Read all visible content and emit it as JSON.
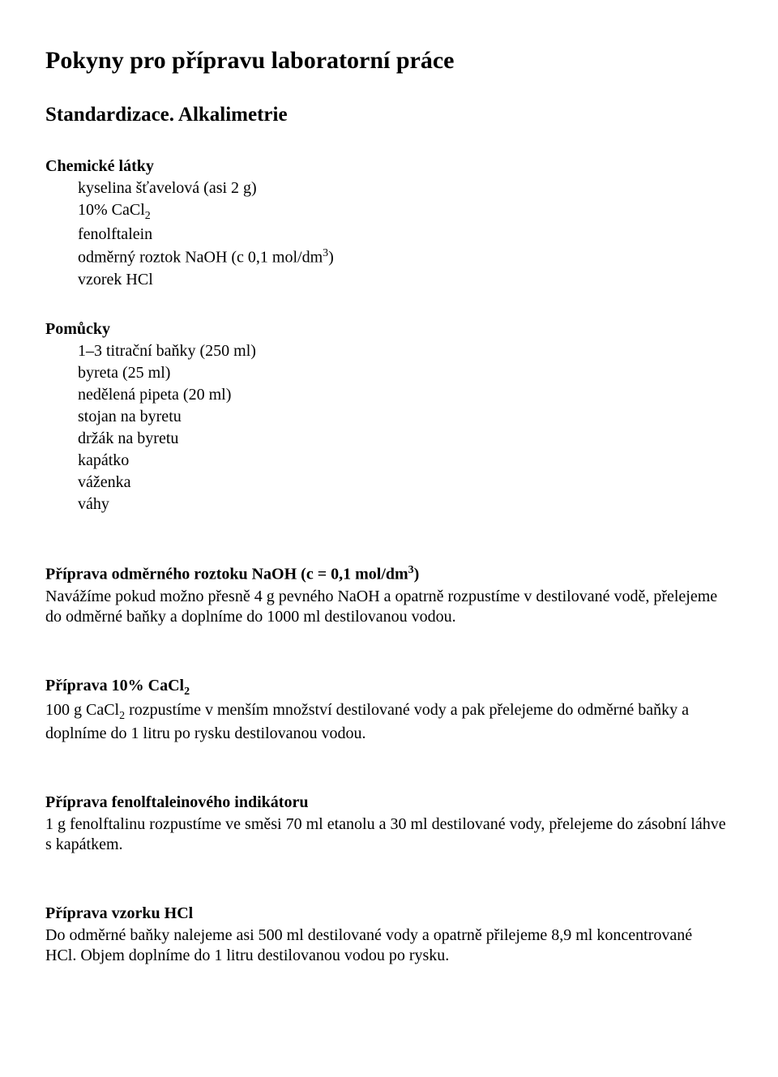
{
  "title": "Pokyny pro přípravu laboratorní práce",
  "subtitle": "Standardizace. Alkalimetrie",
  "chemicals": {
    "heading": "Chemické látky",
    "items": [
      "kyselina šťavelová (asi 2 g)",
      "10% CaCl<sub>2</sub>",
      "fenolftalein",
      "odměrný roztok NaOH (c 0,1 mol/dm<sup>3</sup>)",
      "vzorek HCl"
    ]
  },
  "tools": {
    "heading": "Pomůcky",
    "items": [
      "1–3 titrační baňky (250 ml)",
      "byreta (25 ml)",
      "nedělená pipeta (20 ml)",
      "stojan na byretu",
      "držák na byretu",
      "kapátko",
      "váženka",
      "váhy"
    ]
  },
  "naoh": {
    "heading": "Příprava odměrného roztoku NaOH (c = 0,1 mol/dm<sup>3</sup>)",
    "body": "Navážíme pokud možno přesně 4 g pevného NaOH a opatrně rozpustíme v destilované vodě, přelejeme do odměrné baňky a doplníme do 1000 ml destilovanou vodou."
  },
  "cacl2": {
    "heading": "Příprava 10% CaCl<sub>2</sub>",
    "body": "100 g CaCl<sub>2</sub> rozpustíme v menším množství destilované vody a pak přelejeme do odměrné baňky a doplníme do 1 litru po rysku destilovanou vodou."
  },
  "fenol": {
    "heading": "Příprava fenolftaleinového indikátoru",
    "body": "1 g fenolftalinu rozpustíme ve směsi 70 ml etanolu a 30 ml destilované vody, přelejeme do zásobní láhve s kapátkem."
  },
  "hcl": {
    "heading": "Příprava vzorku HCl",
    "body": "Do odměrné baňky nalejeme asi 500 ml destilované vody a opatrně přilejeme 8,9 ml koncentrované HCl. Objem doplníme do 1 litru destilovanou vodou po rysku."
  }
}
